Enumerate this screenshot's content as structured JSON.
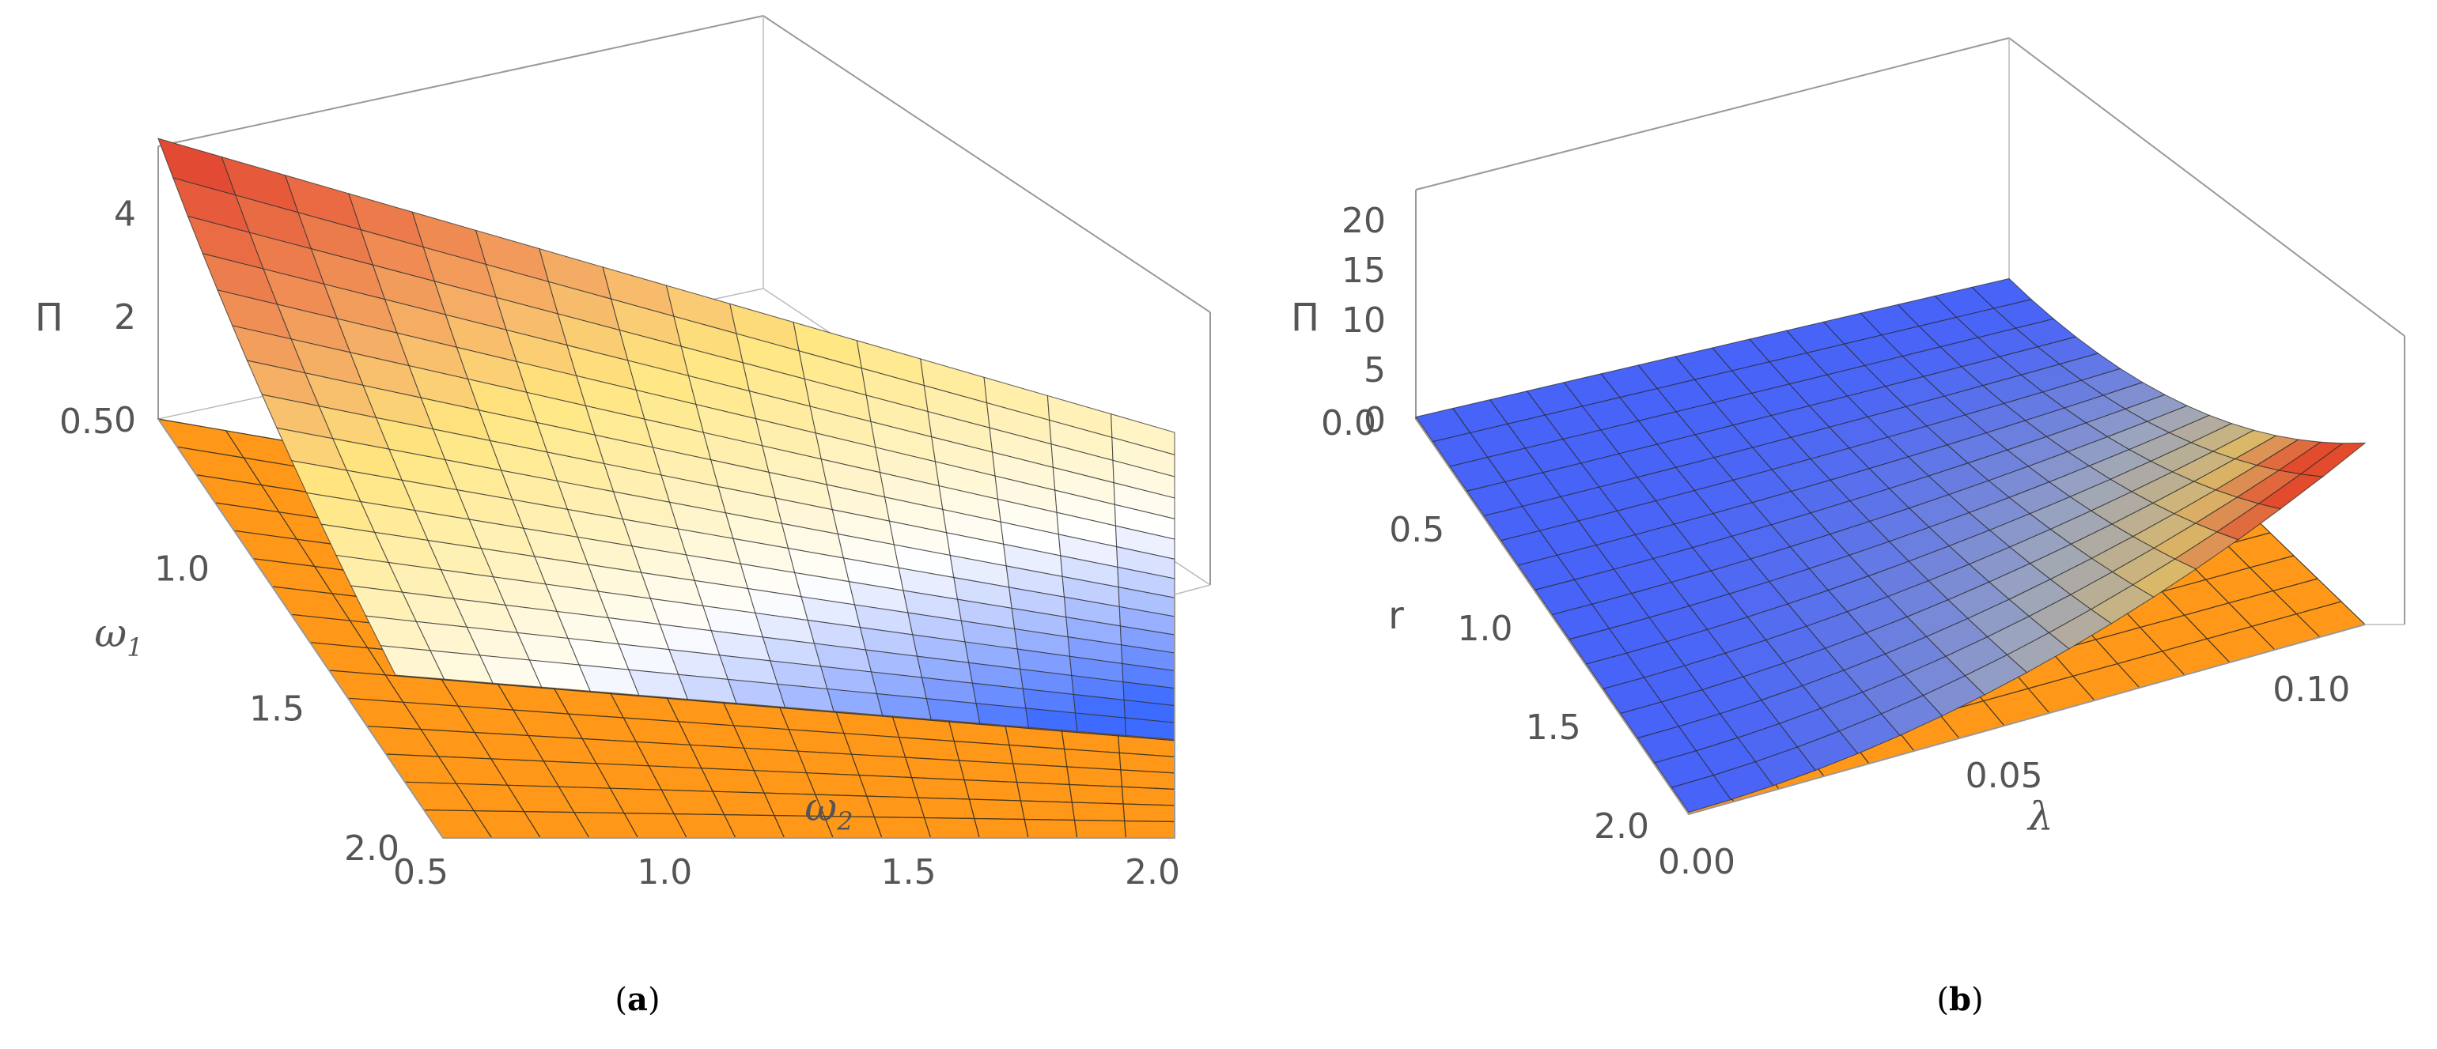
{
  "chart_data": [
    {
      "type": "surface3d",
      "caption": "a",
      "zlabel": "Π",
      "xlabel": "ω1",
      "ylabel": "ω2",
      "x_range": [
        0.5,
        2.0
      ],
      "y_range": [
        0.5,
        2.0
      ],
      "z_range": [
        0,
        5.3
      ],
      "x_ticks": [
        "0.5",
        "1.0",
        "1.5",
        "2.0"
      ],
      "y_ticks": [
        "0.5",
        "1.0",
        "1.5",
        "2.0"
      ],
      "z_ticks": [
        "0",
        "2",
        "4"
      ],
      "z_tick_values": [
        0,
        2,
        4
      ],
      "x_tick_values": [
        0.5,
        1.0,
        1.5,
        2.0
      ],
      "y_tick_values": [
        0.5,
        1.0,
        1.5,
        2.0
      ],
      "grid_n": 15,
      "top_surface": {
        "corner_values": {
          "x0.5_y0.5": 5.2,
          "x0.5_y2.0": 2.9,
          "x2.0_y0.5": 1.6,
          "x2.0_y2.0": 0.9
        },
        "region": "omega1 <= 1.75",
        "colormap": [
          "#e34a33",
          "#ffe680",
          "#ffffff",
          "#3d6bff"
        ]
      },
      "floor_surface": {
        "value": 0,
        "color": "#ff9819"
      }
    },
    {
      "type": "surface3d",
      "caption": "b",
      "zlabel": "Π",
      "xlabel": "r",
      "ylabel": "λ",
      "x_range": [
        0.0,
        2.0
      ],
      "y_range": [
        0.0,
        0.11
      ],
      "z_range": [
        0,
        23
      ],
      "x_ticks": [
        "0.0",
        "0.5",
        "1.0",
        "1.5",
        "2.0"
      ],
      "y_ticks": [
        "0.00",
        "0.05",
        "0.10"
      ],
      "z_ticks": [
        "0",
        "5",
        "10",
        "15",
        "20"
      ],
      "z_tick_values": [
        0,
        5,
        10,
        15,
        20
      ],
      "x_tick_values": [
        0.0,
        0.5,
        1.0,
        1.5,
        2.0
      ],
      "y_tick_values": [
        0.0,
        0.05,
        0.1
      ],
      "grid_n": 15,
      "top_surface": {
        "corner_values": {
          "r0.0_l0.00": 0,
          "r0.0_l0.11": 0,
          "r2.0_l0.00": 0,
          "r2.0_l0.11": 18
        },
        "colormap": [
          "#3d5bff",
          "#9aa4bf",
          "#d9b86a",
          "#e24b2c"
        ]
      },
      "floor_surface": {
        "value": 0,
        "color": "#ff9819"
      }
    }
  ]
}
